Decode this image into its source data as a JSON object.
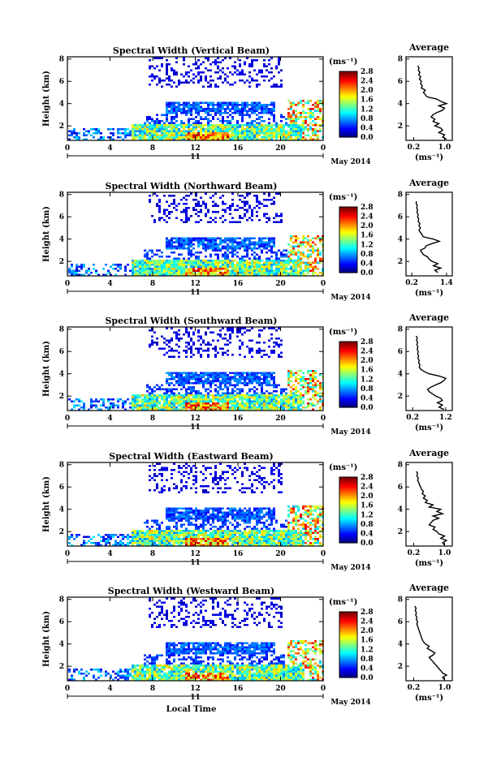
{
  "chart_data": [
    {
      "type": "heatmap",
      "title": "Spectral Width (Vertical Beam)",
      "ylabel": "Height (km)",
      "xticks": [
        "0",
        "4",
        "8",
        "12",
        "16",
        "20",
        "0"
      ],
      "yticks": [
        "2",
        "4",
        "6",
        "8"
      ],
      "xlim": [
        0,
        24
      ],
      "ylim": [
        0.7,
        8.2
      ],
      "day_label": "11",
      "month_label": "May 2014",
      "colorbar": {
        "unit": "(ms⁻¹)",
        "ticks": [
          "0.0",
          "0.4",
          "0.8",
          "1.2",
          "1.6",
          "2.0",
          "2.4",
          "2.8"
        ],
        "range": [
          0,
          2.8
        ]
      },
      "profile": {
        "title": "Average",
        "xticks": [
          "0.2",
          "1.0"
        ],
        "xlim": [
          0,
          1.2
        ],
        "yticks": [
          "2",
          "4",
          "6",
          "8"
        ],
        "unit": "(ms⁻¹)",
        "heights": [
          0.8,
          1.0,
          1.2,
          1.4,
          1.6,
          1.8,
          2.0,
          2.2,
          2.4,
          2.6,
          2.8,
          3.0,
          3.2,
          3.4,
          3.6,
          3.8,
          4.0,
          4.2,
          4.4,
          4.6,
          4.8,
          5.0,
          5.2,
          5.4,
          5.6,
          5.8,
          6.0,
          6.2,
          6.4,
          6.6,
          6.8,
          7.0,
          7.2,
          7.4
        ],
        "widths": [
          1.05,
          0.95,
          1.0,
          0.85,
          0.95,
          0.9,
          0.75,
          0.85,
          0.7,
          0.75,
          0.65,
          0.7,
          0.8,
          0.95,
          1.0,
          0.85,
          1.05,
          0.9,
          0.8,
          0.55,
          0.5,
          0.45,
          0.5,
          0.4,
          0.42,
          0.38,
          0.4,
          0.35,
          0.38,
          0.33,
          0.36,
          0.32,
          0.34,
          0.3
        ]
      }
    },
    {
      "type": "heatmap",
      "title": "Spectral Width (Northward Beam)",
      "ylabel": "Height (km)",
      "xticks": [
        "0",
        "4",
        "8",
        "12",
        "16",
        "20",
        "0"
      ],
      "yticks": [
        "2",
        "4",
        "6",
        "8"
      ],
      "xlim": [
        0,
        24
      ],
      "ylim": [
        0.7,
        8.2
      ],
      "day_label": "11",
      "month_label": "May 2014",
      "colorbar": {
        "unit": "(ms⁻¹)",
        "ticks": [
          "0.0",
          "0.4",
          "0.8",
          "1.2",
          "1.6",
          "2.0",
          "2.4",
          "2.8"
        ],
        "range": [
          0,
          2.8
        ]
      },
      "profile": {
        "title": "Average",
        "xticks": [
          "0.2",
          "1.4"
        ],
        "xlim": [
          0,
          1.6
        ],
        "yticks": [
          "2",
          "4",
          "6",
          "8"
        ],
        "unit": "(ms⁻¹)",
        "heights": [
          1.0,
          1.2,
          1.4,
          1.6,
          1.8,
          2.0,
          2.2,
          2.4,
          2.6,
          2.8,
          3.0,
          3.2,
          3.4,
          3.6,
          3.8,
          4.0,
          4.2,
          4.4,
          4.6,
          4.8,
          5.0,
          5.2,
          5.4,
          5.6,
          5.8,
          6.0,
          6.2,
          6.4,
          6.6,
          6.8,
          7.0,
          7.2,
          7.4
        ],
        "widths": [
          1.1,
          1.0,
          1.2,
          0.95,
          1.1,
          0.9,
          0.8,
          0.75,
          0.6,
          0.55,
          0.5,
          0.65,
          0.7,
          0.9,
          1.15,
          0.95,
          0.6,
          0.55,
          0.5,
          0.45,
          0.5,
          0.45,
          0.48,
          0.42,
          0.44,
          0.4,
          0.42,
          0.38,
          0.4,
          0.37,
          0.39,
          0.35,
          0.36
        ]
      }
    },
    {
      "type": "heatmap",
      "title": "Spectral Width (Southward Beam)",
      "ylabel": "Height (km)",
      "xticks": [
        "0",
        "4",
        "8",
        "12",
        "16",
        "20",
        "0"
      ],
      "yticks": [
        "2",
        "4",
        "6",
        "8"
      ],
      "xlim": [
        0,
        24
      ],
      "ylim": [
        0.7,
        8.2
      ],
      "day_label": "11",
      "month_label": "May 2014",
      "colorbar": {
        "unit": "(ms⁻¹)",
        "ticks": [
          "0.0",
          "0.4",
          "0.8",
          "1.2",
          "1.6",
          "2.0",
          "2.4",
          "2.8"
        ],
        "range": [
          0,
          2.8
        ]
      },
      "profile": {
        "title": "Average",
        "xticks": [
          "0.2",
          "1.2"
        ],
        "xlim": [
          0,
          1.4
        ],
        "yticks": [
          "2",
          "4",
          "6",
          "8"
        ],
        "unit": "(ms⁻¹)",
        "heights": [
          0.8,
          1.0,
          1.2,
          1.4,
          1.6,
          1.8,
          2.0,
          2.2,
          2.4,
          2.6,
          2.8,
          3.0,
          3.2,
          3.4,
          3.6,
          3.8,
          4.0,
          4.2,
          4.4,
          4.6,
          4.8,
          5.0,
          5.2,
          5.4,
          5.6,
          5.8,
          6.0,
          6.2,
          6.4,
          6.6,
          6.8,
          7.0,
          7.2,
          7.4
        ],
        "widths": [
          1.15,
          1.0,
          1.1,
          0.95,
          1.1,
          1.05,
          0.9,
          0.8,
          0.7,
          0.65,
          0.75,
          0.9,
          1.05,
          1.15,
          1.2,
          1.0,
          0.7,
          0.55,
          0.45,
          0.4,
          0.42,
          0.38,
          0.4,
          0.36,
          0.38,
          0.35,
          0.37,
          0.34,
          0.36,
          0.33,
          0.35,
          0.32,
          0.34,
          0.31
        ]
      }
    },
    {
      "type": "heatmap",
      "title": "Spectral Width (Eastward Beam)",
      "ylabel": "Height (km)",
      "xticks": [
        "0",
        "4",
        "8",
        "12",
        "16",
        "20",
        "0"
      ],
      "yticks": [
        "2",
        "4",
        "6",
        "8"
      ],
      "xlim": [
        0,
        24
      ],
      "ylim": [
        0.7,
        8.2
      ],
      "day_label": "11",
      "month_label": "May 2014",
      "colorbar": {
        "unit": "(ms⁻¹)",
        "ticks": [
          "0.0",
          "0.4",
          "0.8",
          "1.2",
          "1.6",
          "2.0",
          "2.4",
          "2.8"
        ],
        "range": [
          0,
          2.8
        ]
      },
      "profile": {
        "title": "Average",
        "xticks": [
          "0.2",
          "1.0"
        ],
        "xlim": [
          0,
          1.2
        ],
        "yticks": [
          "2",
          "4",
          "6",
          "8"
        ],
        "unit": "(ms⁻¹)",
        "heights": [
          0.8,
          1.0,
          1.2,
          1.4,
          1.6,
          1.8,
          2.0,
          2.2,
          2.4,
          2.6,
          2.8,
          3.0,
          3.2,
          3.4,
          3.6,
          3.8,
          4.0,
          4.2,
          4.4,
          4.6,
          4.8,
          5.0,
          5.2,
          5.4,
          5.6,
          5.8,
          6.0,
          6.2,
          6.4,
          6.6,
          6.8,
          7.0,
          7.2,
          7.4
        ],
        "widths": [
          1.0,
          0.95,
          1.05,
          0.9,
          1.0,
          0.85,
          0.8,
          0.7,
          0.75,
          0.6,
          0.65,
          0.7,
          0.85,
          0.7,
          0.95,
          0.8,
          0.9,
          0.6,
          0.7,
          0.5,
          0.55,
          0.45,
          0.5,
          0.42,
          0.45,
          0.4,
          0.38,
          0.35,
          0.33,
          0.3,
          0.32,
          0.28,
          0.3,
          0.27
        ]
      }
    },
    {
      "type": "heatmap",
      "title": "Spectral Width (Westward Beam)",
      "ylabel": "Height (km)",
      "xticks": [
        "0",
        "4",
        "8",
        "12",
        "16",
        "20",
        "0"
      ],
      "yticks": [
        "2",
        "4",
        "6",
        "8"
      ],
      "xlim": [
        0,
        24
      ],
      "ylim": [
        0.7,
        8.2
      ],
      "day_label": "11",
      "month_label": "May 2014",
      "xlabel": "Local Time",
      "colorbar": {
        "unit": "(ms⁻¹)",
        "ticks": [
          "0.0",
          "0.4",
          "0.8",
          "1.2",
          "1.6",
          "2.0",
          "2.4",
          "2.8"
        ],
        "range": [
          0,
          2.8
        ]
      },
      "profile": {
        "title": "Average",
        "xticks": [
          "0.2",
          "1.0"
        ],
        "xlim": [
          0,
          1.2
        ],
        "yticks": [
          "2",
          "4",
          "6",
          "8"
        ],
        "unit": "(ms⁻¹)",
        "heights": [
          0.8,
          1.0,
          1.2,
          1.4,
          1.6,
          1.8,
          2.0,
          2.2,
          2.4,
          2.6,
          2.8,
          3.0,
          3.2,
          3.4,
          3.6,
          3.8,
          4.0,
          4.2,
          4.4,
          4.6,
          4.8,
          5.0,
          5.2,
          5.4,
          5.6,
          5.8,
          6.0,
          6.2,
          6.4,
          6.6,
          6.8,
          7.0,
          7.2,
          7.4
        ],
        "widths": [
          1.0,
          0.95,
          1.05,
          0.95,
          0.9,
          0.85,
          0.8,
          0.75,
          0.7,
          0.65,
          0.6,
          0.7,
          0.75,
          0.65,
          0.55,
          0.6,
          0.5,
          0.45,
          0.42,
          0.4,
          0.38,
          0.36,
          0.34,
          0.32,
          0.3,
          0.28,
          0.3,
          0.27,
          0.28,
          0.25,
          0.27,
          0.24,
          0.26,
          0.23
        ]
      }
    }
  ]
}
